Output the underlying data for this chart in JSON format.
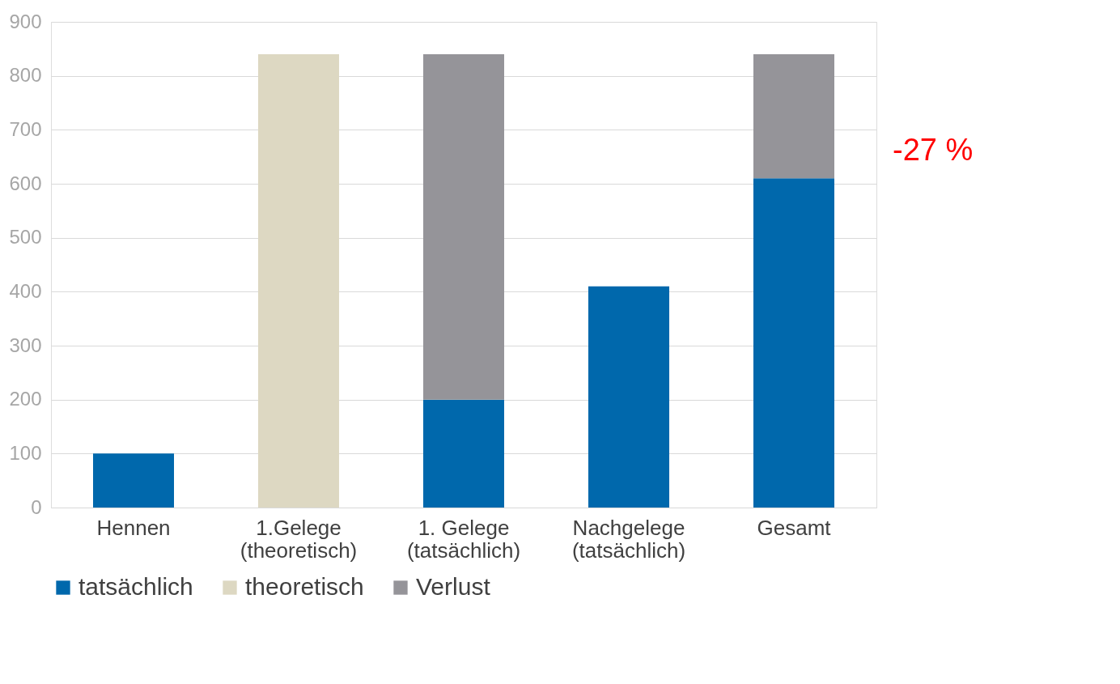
{
  "chart_data": {
    "type": "bar",
    "stacked": true,
    "categories": [
      "Hennen",
      "1.Gelege\n(theoretisch)",
      "1. Gelege\n(tatsächlich)",
      "Nachgelege\n(tatsächlich)",
      "Gesamt"
    ],
    "series": [
      {
        "name": "tatsächlich",
        "color": "#0068ac",
        "values": [
          100,
          null,
          200,
          410,
          610
        ]
      },
      {
        "name": "theoretisch",
        "color": "#ddd8c2",
        "values": [
          null,
          840,
          null,
          null,
          null
        ]
      },
      {
        "name": "Verlust",
        "color": "#959499",
        "values": [
          null,
          null,
          640,
          null,
          230
        ]
      }
    ],
    "ylim": [
      0,
      900
    ],
    "yticks": [
      0,
      100,
      200,
      300,
      400,
      500,
      600,
      700,
      800,
      900
    ],
    "grid": "y",
    "legend": "bottom",
    "annotations": [
      "-27 %"
    ]
  }
}
